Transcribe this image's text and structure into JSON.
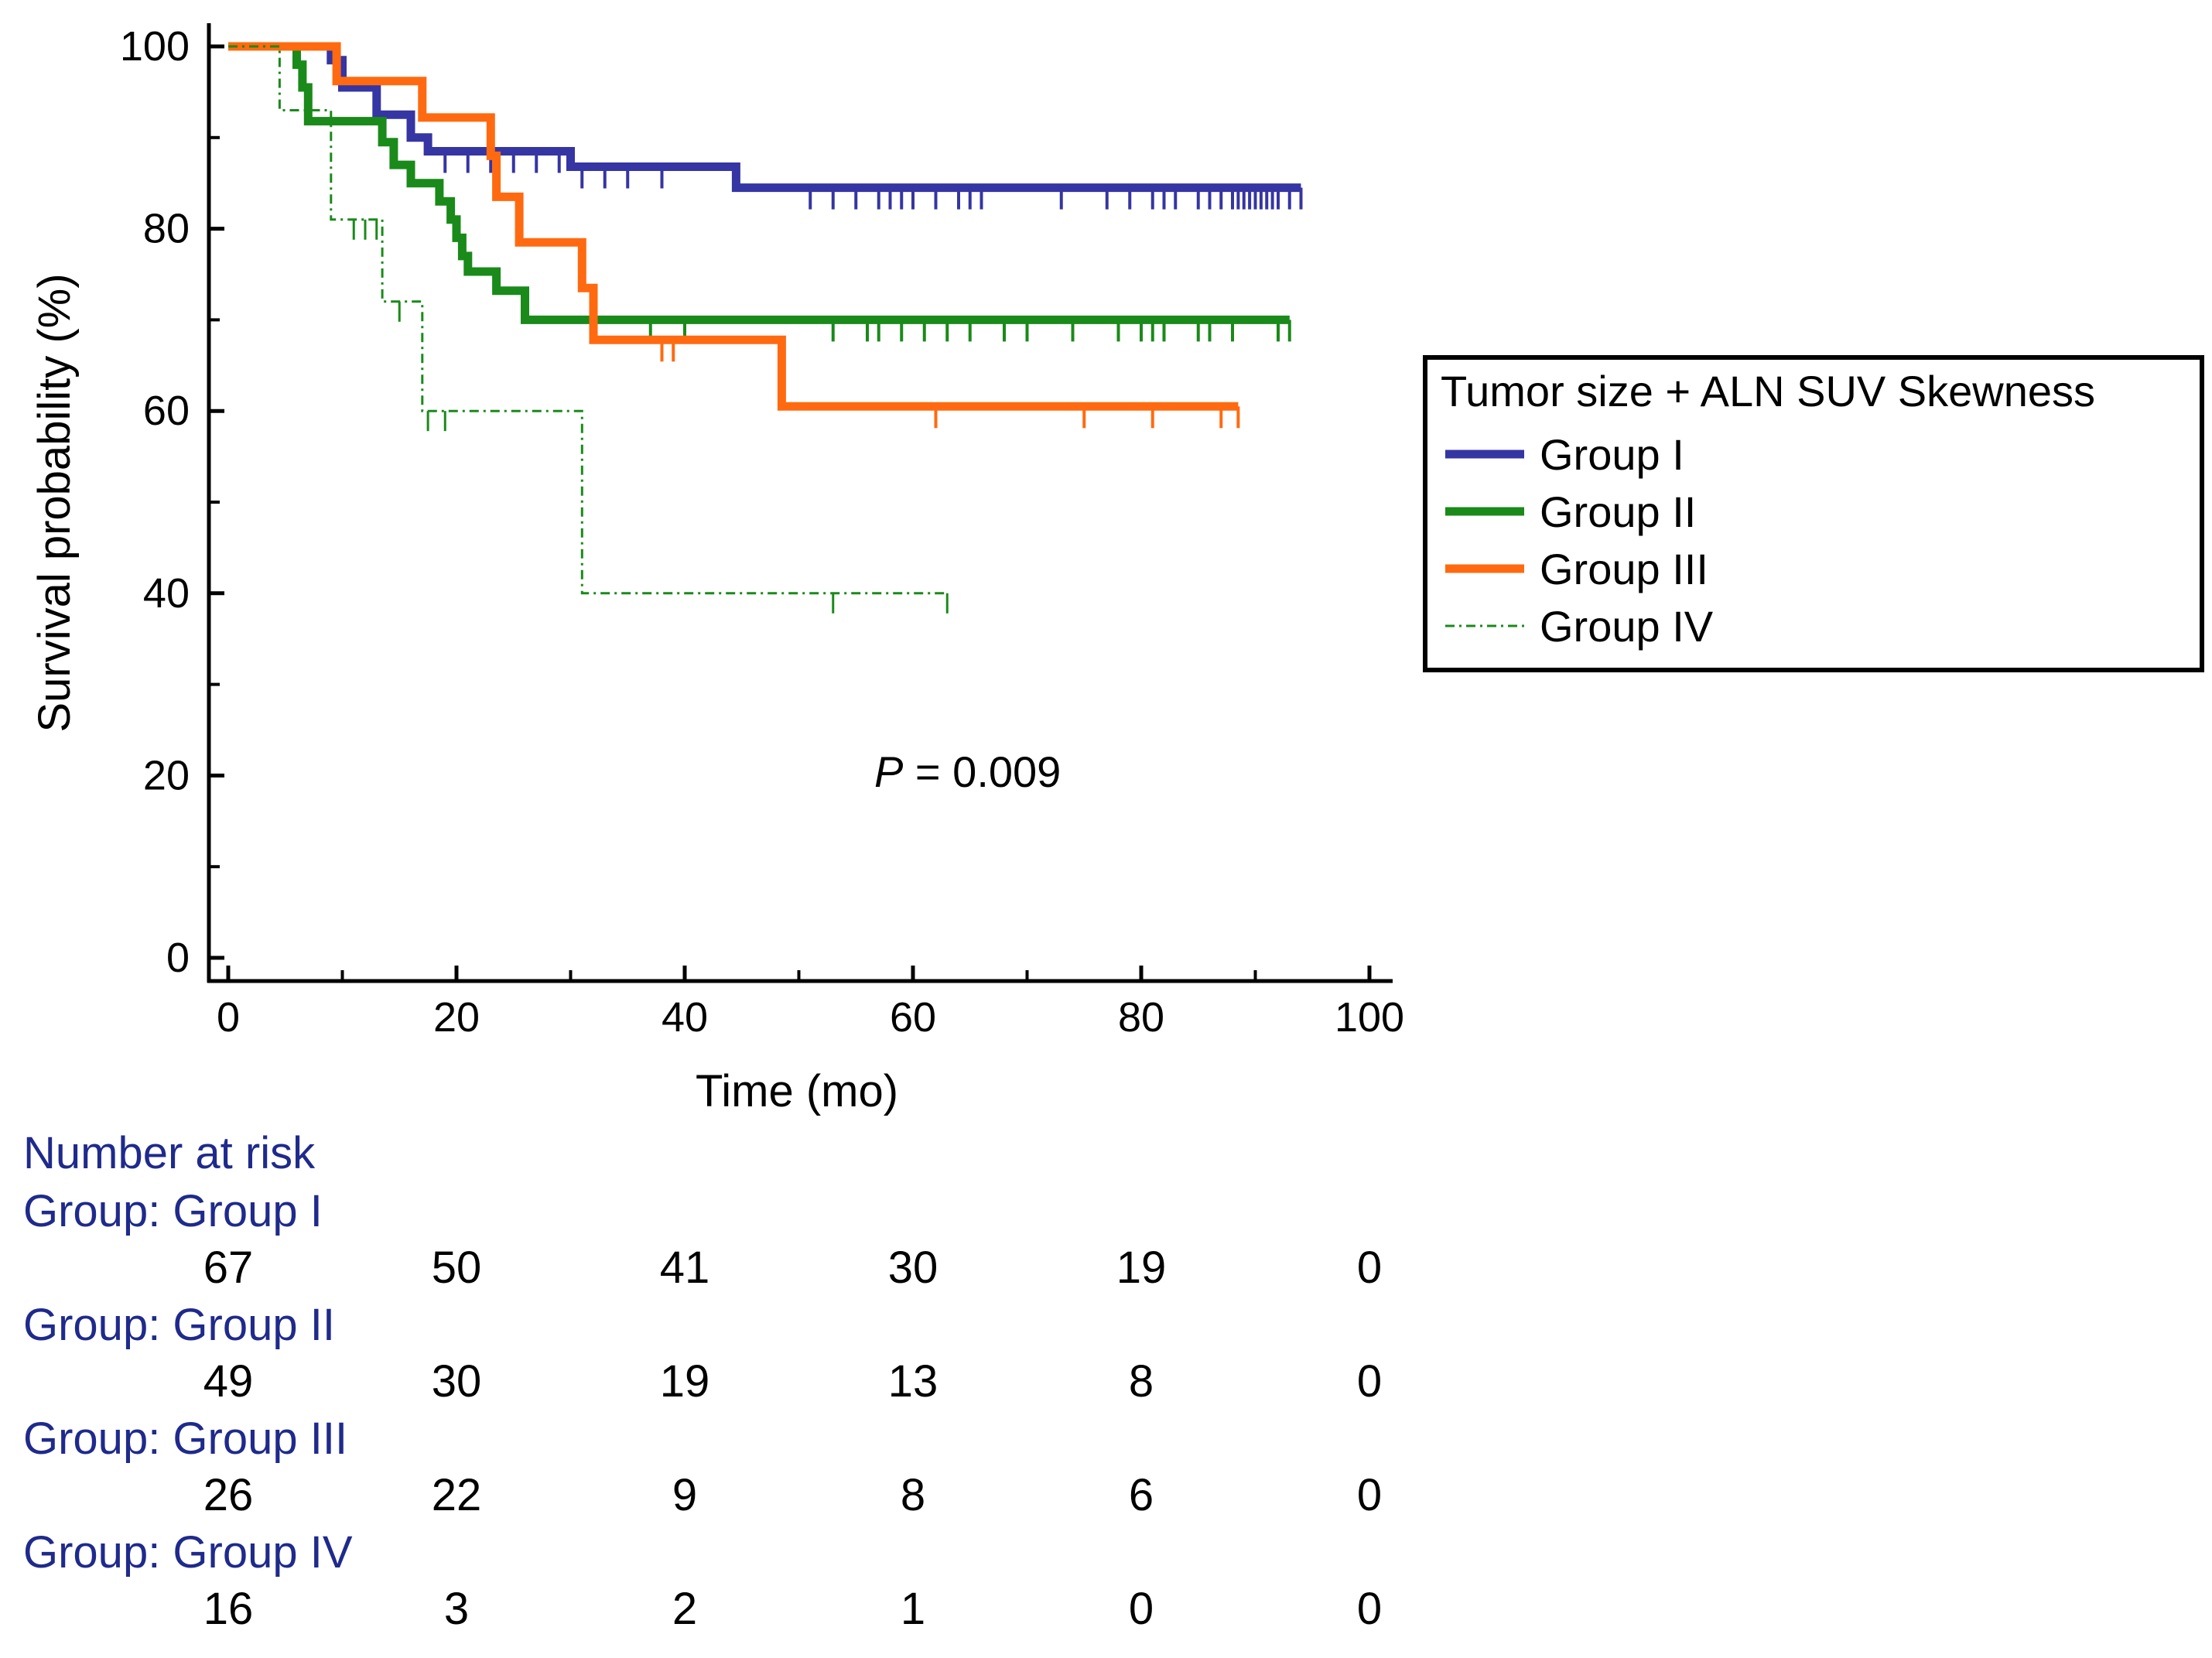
{
  "chart_data": {
    "type": "line",
    "subtype": "kaplan-meier",
    "xlabel": "Time (mo)",
    "ylabel": "Survival probability (%)",
    "xlim": [
      0,
      100
    ],
    "ylim": [
      0,
      100
    ],
    "x_ticks": [
      0,
      20,
      40,
      60,
      80,
      100
    ],
    "y_ticks": [
      0,
      20,
      40,
      60,
      80,
      100
    ],
    "annotation": {
      "label": "P",
      "text": " = 0.009"
    },
    "legend": {
      "title": "Tumor size + ALN SUV Skewness",
      "position": "right",
      "entries": [
        "Group I",
        "Group II",
        "Group III",
        "Group IV"
      ]
    },
    "series": [
      {
        "name": "Group I",
        "color": "#3535a3",
        "style": "solid-thick",
        "steps": [
          [
            0,
            100
          ],
          [
            9,
            100
          ],
          [
            9,
            98.5
          ],
          [
            10,
            98.5
          ],
          [
            10,
            95.5
          ],
          [
            13,
            95.5
          ],
          [
            13,
            92.5
          ],
          [
            16,
            92.5
          ],
          [
            16,
            90
          ],
          [
            17.5,
            90
          ],
          [
            17.5,
            88.5
          ],
          [
            30,
            88.5
          ],
          [
            30,
            86.8
          ],
          [
            44.5,
            86.8
          ],
          [
            44.5,
            84.5
          ],
          [
            94,
            84.5
          ]
        ],
        "censor": [
          19,
          21,
          23,
          25,
          27,
          29,
          31,
          33,
          35,
          38,
          51,
          53,
          55,
          57,
          58,
          59,
          60,
          62,
          64,
          65,
          66,
          73,
          77,
          79,
          81,
          82,
          83,
          85,
          86,
          87,
          88,
          88.5,
          89,
          89.5,
          90,
          90.5,
          91,
          91.5,
          92,
          93,
          94
        ]
      },
      {
        "name": "Group II",
        "color": "#1a8a1a",
        "style": "solid-thick",
        "steps": [
          [
            0,
            100
          ],
          [
            6,
            100
          ],
          [
            6,
            98
          ],
          [
            6.5,
            98
          ],
          [
            6.5,
            95.5
          ],
          [
            7,
            95.5
          ],
          [
            7,
            91.8
          ],
          [
            13.5,
            91.8
          ],
          [
            13.5,
            89.5
          ],
          [
            14.5,
            89.5
          ],
          [
            14.5,
            87
          ],
          [
            16,
            87
          ],
          [
            16,
            85
          ],
          [
            18.5,
            85
          ],
          [
            18.5,
            83
          ],
          [
            19.5,
            83
          ],
          [
            19.5,
            81
          ],
          [
            20,
            81
          ],
          [
            20,
            79
          ],
          [
            20.5,
            79
          ],
          [
            20.5,
            77
          ],
          [
            21,
            77
          ],
          [
            21,
            75.3
          ],
          [
            23.5,
            75.3
          ],
          [
            23.5,
            73.2
          ],
          [
            26,
            73.2
          ],
          [
            26,
            70
          ],
          [
            93,
            70
          ]
        ],
        "censor": [
          37,
          40,
          53,
          56,
          57,
          59,
          61,
          63,
          65,
          68,
          70,
          74,
          78,
          80,
          81,
          82,
          85,
          86,
          88,
          92,
          93
        ]
      },
      {
        "name": "Group III",
        "color": "#ff6a10",
        "style": "solid-thick",
        "steps": [
          [
            0,
            100
          ],
          [
            9.5,
            100
          ],
          [
            9.5,
            96.2
          ],
          [
            17,
            96.2
          ],
          [
            17,
            92.2
          ],
          [
            23,
            92.2
          ],
          [
            23,
            88
          ],
          [
            23.5,
            88
          ],
          [
            23.5,
            83.5
          ],
          [
            25.5,
            83.5
          ],
          [
            25.5,
            78.5
          ],
          [
            31,
            78.5
          ],
          [
            31,
            73.5
          ],
          [
            32,
            73.5
          ],
          [
            32,
            67.8
          ],
          [
            48.5,
            67.8
          ],
          [
            48.5,
            60.5
          ],
          [
            88.5,
            60.5
          ]
        ],
        "censor": [
          38,
          39,
          62,
          75,
          81,
          87,
          88.5
        ]
      },
      {
        "name": "Group IV",
        "color": "#1a8a1a",
        "style": "dash-dot-thin",
        "steps": [
          [
            0,
            100
          ],
          [
            4.5,
            100
          ],
          [
            4.5,
            93
          ],
          [
            9,
            93
          ],
          [
            9,
            81
          ],
          [
            13.5,
            81
          ],
          [
            13.5,
            72
          ],
          [
            17,
            72
          ],
          [
            17,
            60
          ],
          [
            31,
            60
          ],
          [
            31,
            40
          ],
          [
            63,
            40
          ]
        ],
        "censor": [
          11,
          12,
          13,
          15,
          17.5,
          19,
          53,
          63
        ]
      }
    ]
  },
  "risk_table": {
    "heading": "Number at risk",
    "times": [
      0,
      20,
      40,
      60,
      80,
      100
    ],
    "groups": [
      {
        "label": "Group: Group I",
        "counts": [
          67,
          50,
          41,
          30,
          19,
          0
        ]
      },
      {
        "label": "Group: Group II",
        "counts": [
          49,
          30,
          19,
          13,
          8,
          0
        ]
      },
      {
        "label": "Group: Group III",
        "counts": [
          26,
          22,
          9,
          8,
          6,
          0
        ]
      },
      {
        "label": "Group: Group IV",
        "counts": [
          16,
          3,
          2,
          1,
          0,
          0
        ]
      }
    ]
  }
}
